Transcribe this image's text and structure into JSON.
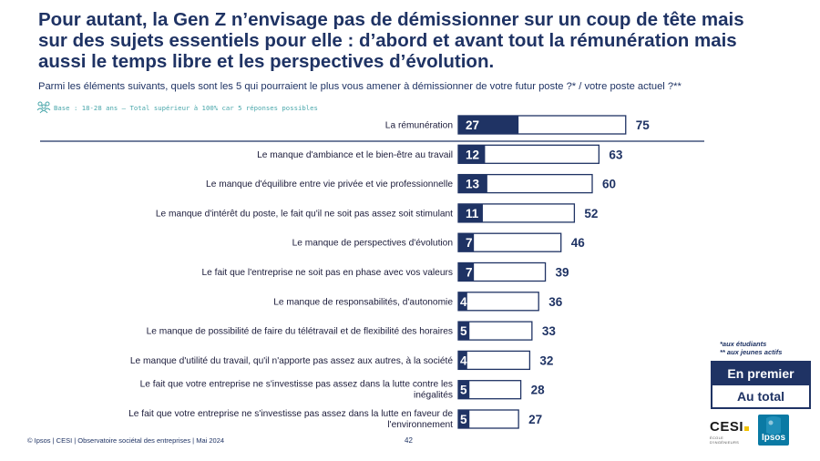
{
  "title_lines": [
    "Pour autant, la Gen Z n’envisage pas de démissionner sur un coup de tête mais",
    "sur des sujets essentiels pour elle : d’abord et avant tout la rémunération mais",
    "aussi le temps libre et les perspectives d’évolution."
  ],
  "question": "Parmi les éléments suivants, quels sont les 5 qui pourraient le plus vous amener à démissionner de votre futur poste ?* / votre poste actuel ?**",
  "base_note": "Base : 18-28 ans – Total supérieur à 100% car 5 réponses possibles",
  "base_icon": "people-icon",
  "footer": {
    "source": "© Ipsos | CESI | Observatoire sociétal des entreprises | Mai 2024",
    "page": "42"
  },
  "notes": [
    "*aux étudiants",
    "** aux jeunes actifs"
  ],
  "legend": {
    "first": "En premier",
    "total": "Au total"
  },
  "logos": {
    "cesi": "CESI",
    "cesi_sub": "ÉCOLE D'INGÉNIEURS",
    "ipsos": "Ipsos"
  },
  "colors": {
    "navy": "#1f3364",
    "teal": "#4aa7ab",
    "ipsos_blue": "#0a7aa4",
    "cesi_yellow": "#f2c200"
  },
  "chart_data": {
    "type": "bar",
    "orientation": "horizontal",
    "categories": [
      [
        "La rémunération"
      ],
      [
        "Le manque d'ambiance et le bien-être au travail"
      ],
      [
        "Le manque d'équilibre entre vie privée et vie professionnelle"
      ],
      [
        "Le manque d'intérêt du poste, le fait qu'il ne soit pas assez soit stimulant"
      ],
      [
        "Le manque de perspectives d'évolution"
      ],
      [
        "Le fait que l'entreprise ne soit pas en phase avec vos valeurs"
      ],
      [
        "Le manque de responsabilités, d'autonomie"
      ],
      [
        "Le manque de possibilité de faire du télétravail et de flexibilité des horaires"
      ],
      [
        "Le manque d'utilité du travail, qu'il n'apporte pas assez aux autres, à la société"
      ],
      [
        "Le fait que votre entreprise ne s'investisse pas assez dans la lutte contre les",
        "inégalités"
      ],
      [
        "Le fait que votre entreprise ne s'investisse pas assez dans la lutte en faveur de",
        "l'environnement"
      ]
    ],
    "series": [
      {
        "name": "En premier",
        "values": [
          27,
          12,
          13,
          11,
          7,
          7,
          4,
          5,
          4,
          5,
          5
        ]
      },
      {
        "name": "Au total",
        "values": [
          75,
          63,
          60,
          52,
          46,
          39,
          36,
          33,
          32,
          28,
          27
        ]
      }
    ],
    "xlim": [
      0,
      100
    ],
    "grid": false,
    "legend": "right"
  }
}
